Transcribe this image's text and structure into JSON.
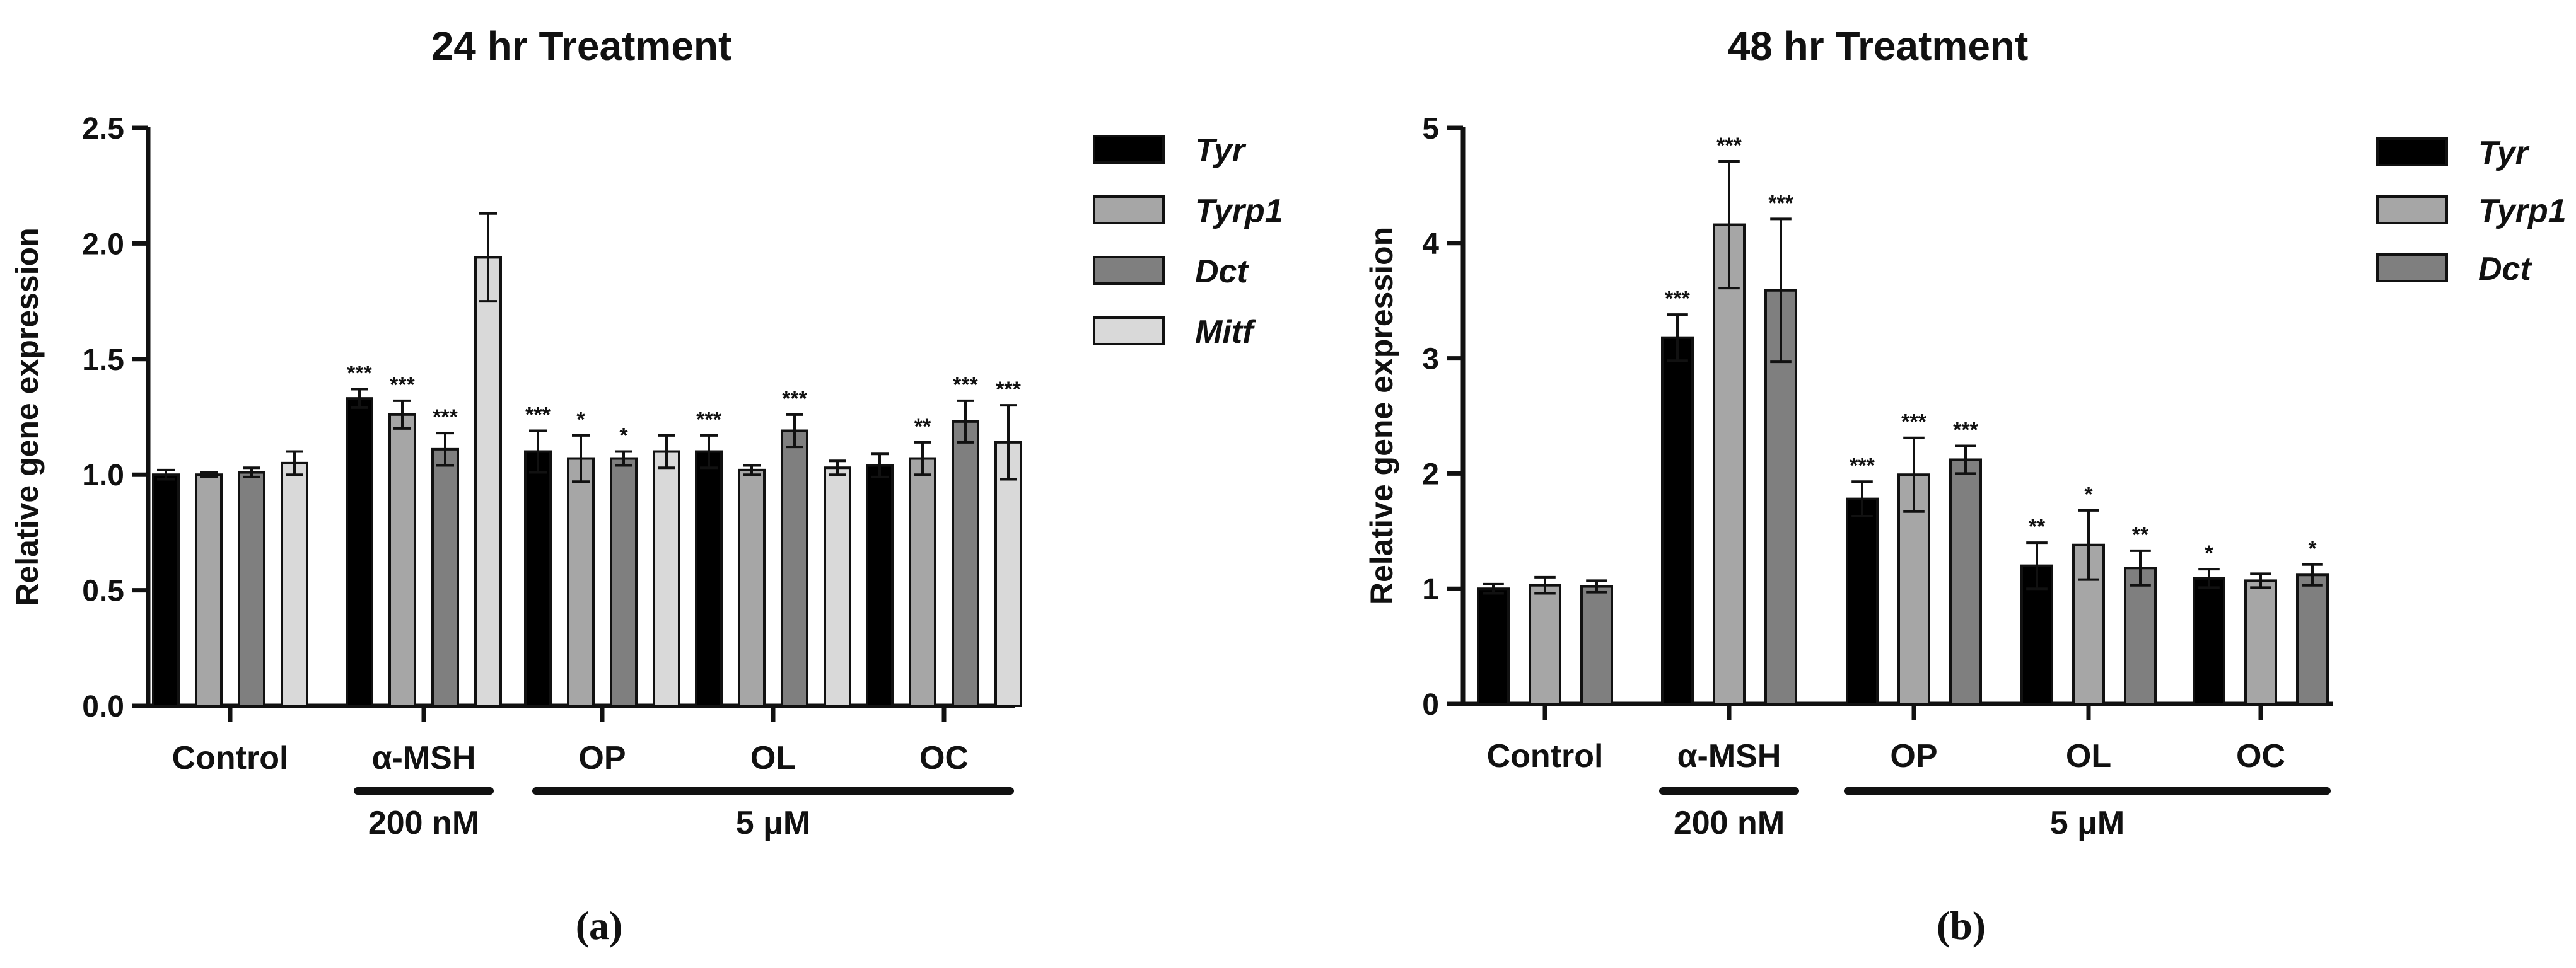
{
  "chart_data": [
    {
      "type": "bar",
      "panel_label": "(a)",
      "title": "24 hr Treatment",
      "ylabel": "Relative gene expression",
      "xlabel": "",
      "ylim": [
        0,
        2.5
      ],
      "yticks": [
        "0.0",
        "0.5",
        "1.0",
        "1.5",
        "2.0",
        "2.5"
      ],
      "categories": [
        "Control",
        "α-MSH",
        "OP",
        "OL",
        "OC"
      ],
      "groups": [
        {
          "label": "200 nM",
          "categories": [
            "α-MSH"
          ]
        },
        {
          "label": "5 μM",
          "categories": [
            "OP",
            "OL",
            "OC"
          ]
        }
      ],
      "legend_position": "right",
      "series": [
        {
          "name": "Tyr",
          "color": "#000000",
          "values": [
            1.0,
            1.33,
            1.1,
            1.1,
            1.04
          ],
          "errors": [
            0.02,
            0.04,
            0.09,
            0.07,
            0.05
          ],
          "sig": [
            "",
            "***",
            "***",
            "***",
            ""
          ]
        },
        {
          "name": "Tyrp1",
          "color": "#a6a6a6",
          "values": [
            1.0,
            1.26,
            1.07,
            1.02,
            1.07
          ],
          "errors": [
            0.01,
            0.06,
            0.1,
            0.02,
            0.07
          ],
          "sig": [
            "",
            "***",
            "*",
            "",
            "**"
          ]
        },
        {
          "name": "Dct",
          "color": "#7f7f7f",
          "values": [
            1.01,
            1.11,
            1.07,
            1.19,
            1.23
          ],
          "errors": [
            0.02,
            0.07,
            0.03,
            0.07,
            0.09
          ],
          "sig": [
            "",
            "***",
            "*",
            "***",
            "***"
          ]
        },
        {
          "name": "Mitf",
          "color": "#d9d9d9",
          "values": [
            1.05,
            1.94,
            1.1,
            1.03,
            1.14
          ],
          "errors": [
            0.05,
            0.19,
            0.07,
            0.03,
            0.16
          ],
          "sig": [
            "",
            "",
            "",
            "",
            "***"
          ]
        }
      ]
    },
    {
      "type": "bar",
      "panel_label": "(b)",
      "title": "48 hr Treatment",
      "ylabel": "Relative gene expression",
      "xlabel": "",
      "ylim": [
        0,
        5
      ],
      "yticks": [
        "0",
        "1",
        "2",
        "3",
        "4",
        "5"
      ],
      "categories": [
        "Control",
        "α-MSH",
        "OP",
        "OL",
        "OC"
      ],
      "groups": [
        {
          "label": "200 nM",
          "categories": [
            "α-MSH"
          ]
        },
        {
          "label": "5 μM",
          "categories": [
            "OP",
            "OL",
            "OC"
          ]
        }
      ],
      "legend_position": "right",
      "series": [
        {
          "name": "Tyr",
          "color": "#000000",
          "values": [
            1.0,
            3.18,
            1.78,
            1.2,
            1.09
          ],
          "errors": [
            0.04,
            0.2,
            0.15,
            0.2,
            0.08
          ],
          "sig": [
            "",
            "***",
            "***",
            "**",
            "*"
          ]
        },
        {
          "name": "Tyrp1",
          "color": "#a6a6a6",
          "values": [
            1.03,
            4.16,
            1.99,
            1.38,
            1.07
          ],
          "errors": [
            0.07,
            0.55,
            0.32,
            0.3,
            0.06
          ],
          "sig": [
            "",
            "***",
            "***",
            "*",
            ""
          ]
        },
        {
          "name": "Dct",
          "color": "#7f7f7f",
          "values": [
            1.02,
            3.59,
            2.12,
            1.18,
            1.12
          ],
          "errors": [
            0.05,
            0.62,
            0.12,
            0.15,
            0.09
          ],
          "sig": [
            "",
            "***",
            "***",
            "**",
            "*"
          ]
        }
      ]
    }
  ]
}
